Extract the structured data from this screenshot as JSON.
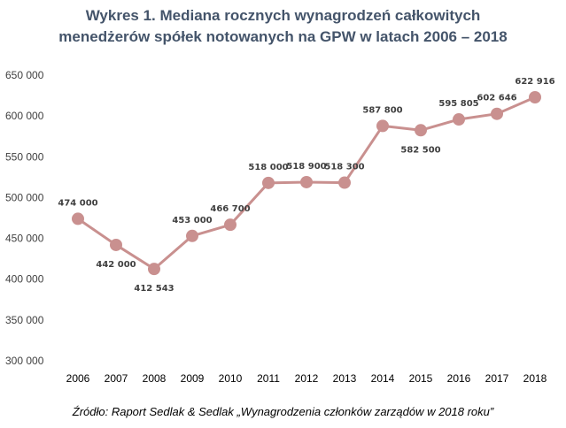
{
  "chart_data": {
    "type": "line",
    "title_lines": [
      "Wykres 1. Mediana rocznych wynagrodzeń całkowitych",
      "menedżerów spółek notowanych na GPW w latach 2006 – 2018"
    ],
    "x": [
      "2006",
      "2007",
      "2008",
      "2009",
      "2010",
      "2011",
      "2012",
      "2013",
      "2014",
      "2015",
      "2016",
      "2017",
      "2018"
    ],
    "series": [
      {
        "values": [
          474000,
          442000,
          412543,
          453000,
          466700,
          518000,
          518900,
          518300,
          587800,
          582500,
          595805,
          602646,
          622916
        ],
        "data_labels": [
          "474 000",
          "442 000",
          "412 543",
          "453 000",
          "466 700",
          "518 000",
          "518 900",
          "518 300",
          "587 800",
          "582 500",
          "595 805",
          "602 646",
          "622 916"
        ],
        "label_positions": [
          "above",
          "below",
          "below",
          "above",
          "above",
          "above",
          "above",
          "above",
          "above",
          "below",
          "above",
          "above",
          "above"
        ]
      }
    ],
    "yticks": [
      300000,
      350000,
      400000,
      450000,
      500000,
      550000,
      600000,
      650000
    ],
    "ytick_labels": [
      "300 000",
      "350 000",
      "400 000",
      "450 000",
      "500 000",
      "550 000",
      "600 000",
      "650 000"
    ],
    "ylim": [
      300000,
      650000
    ],
    "grid": false,
    "line_color": "#c9908f",
    "xlabel": "",
    "ylabel": ""
  },
  "source": "Źródło: Raport Sedlak & Sedlak „Wynagrodzenia członków zarządów w 2018 roku”"
}
